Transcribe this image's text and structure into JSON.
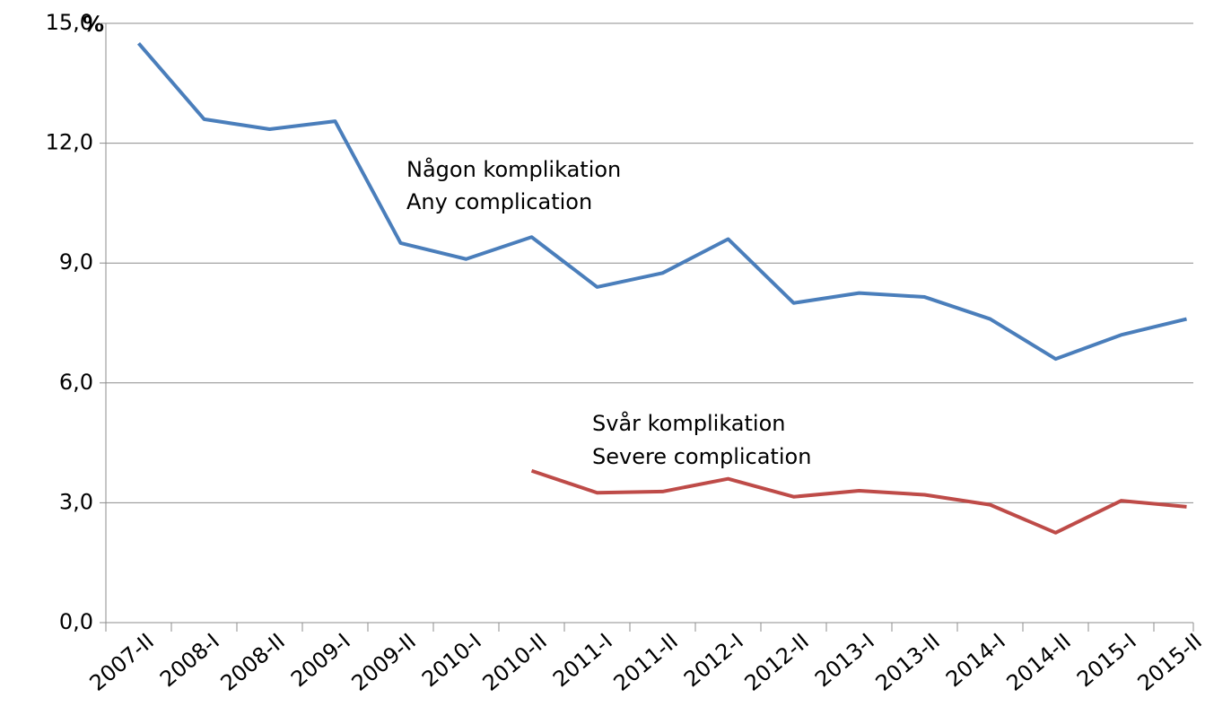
{
  "chart_data": {
    "type": "line",
    "ylabel": "%",
    "categories": [
      "2007-II",
      "2008-I",
      "2008-II",
      "2009-I",
      "2009-II",
      "2010-I",
      "2010-II",
      "2011-I",
      "2011-II",
      "2012-I",
      "2012-II",
      "2013-I",
      "2013-II",
      "2014-I",
      "2014-II",
      "2015-I",
      "2015-II"
    ],
    "series": [
      {
        "color": "#4a7ebb",
        "values": [
          14.5,
          12.6,
          12.35,
          12.55,
          9.5,
          9.1,
          9.65,
          8.4,
          8.75,
          9.6,
          8.0,
          8.25,
          8.15,
          7.6,
          6.6,
          7.2,
          7.6
        ]
      },
      {
        "color": "#be4b48",
        "values": [
          null,
          null,
          null,
          null,
          null,
          null,
          3.8,
          3.25,
          3.28,
          3.6,
          3.15,
          3.3,
          3.2,
          2.95,
          2.25,
          3.05,
          2.9
        ]
      }
    ],
    "annotations": [
      "Någon komplikation",
      "Any complication",
      "Svår komplikation",
      "Severe complication"
    ],
    "ylim": [
      0,
      15
    ],
    "yticks": [
      {
        "value": 0,
        "label": "0,0"
      },
      {
        "value": 3,
        "label": "3,0"
      },
      {
        "value": 6,
        "label": "6,0"
      },
      {
        "value": 9,
        "label": "9,0"
      },
      {
        "value": 12,
        "label": "12,0"
      },
      {
        "value": 15,
        "label": "15,0"
      }
    ],
    "grid": true
  }
}
